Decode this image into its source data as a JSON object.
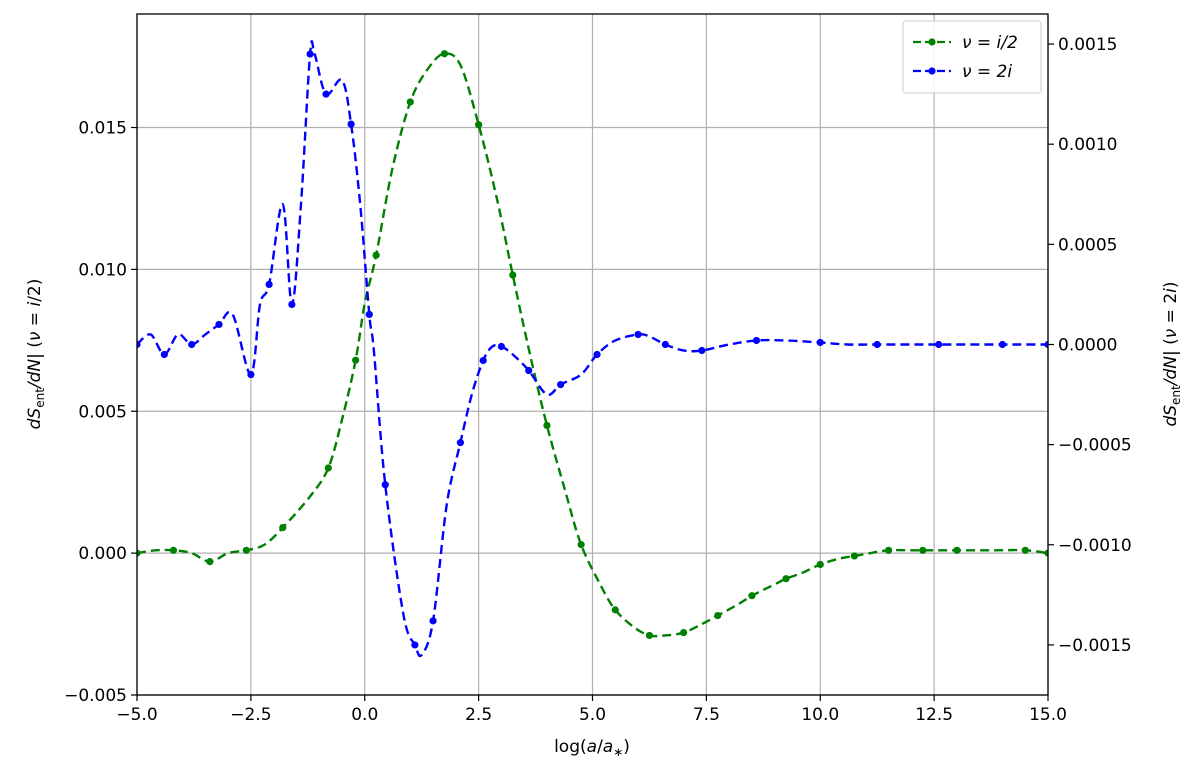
{
  "chart_data": {
    "type": "line",
    "xlabel": "log(a/a_*)",
    "ylabel_left": "dS_ent/dN| (ν = i/2)",
    "ylabel_right": "dS_ent/dN| (ν = 2i)",
    "xlim": [
      -5.0,
      15.0
    ],
    "ylim_left": [
      -0.005,
      0.019
    ],
    "ylim_right": [
      -0.00175,
      0.00165
    ],
    "grid": true,
    "legend_position": "top-right",
    "x_ticks": [
      -5.0,
      -2.5,
      0.0,
      2.5,
      5.0,
      7.5,
      10.0,
      12.5,
      15.0
    ],
    "x_tick_labels": [
      "−5.0",
      "−2.5",
      "0.0",
      "2.5",
      "5.0",
      "7.5",
      "10.0",
      "12.5",
      "15.0"
    ],
    "y_left_ticks": [
      -0.005,
      0.0,
      0.005,
      0.01,
      0.015
    ],
    "y_left_tick_labels": [
      "−0.005",
      "0.000",
      "0.005",
      "0.010",
      "0.015"
    ],
    "y_right_ticks": [
      -0.0015,
      -0.001,
      -0.0005,
      0.0,
      0.0005,
      0.001,
      0.0015
    ],
    "y_right_tick_labels": [
      "−0.0015",
      "−0.0010",
      "−0.0005",
      "0.0000",
      "0.0005",
      "0.0010",
      "0.0015"
    ],
    "series": [
      {
        "name": "ν = i/2",
        "axis": "left",
        "color": "#008000",
        "line_style": "dashed",
        "marker": "circle",
        "x": [
          -5.0,
          -4.6,
          -4.2,
          -3.8,
          -3.4,
          -3.0,
          -2.6,
          -2.2,
          -1.8,
          -1.2,
          -0.8,
          -0.5,
          -0.2,
          0.0,
          0.25,
          0.6,
          1.0,
          1.4,
          1.75,
          2.1,
          2.5,
          2.9,
          3.25,
          3.6,
          4.0,
          4.4,
          4.75,
          5.2,
          5.5,
          5.9,
          6.25,
          6.6,
          7.0,
          7.4,
          7.75,
          8.2,
          8.5,
          9.0,
          9.25,
          9.6,
          10.0,
          10.4,
          10.75,
          11.1,
          11.5,
          12.0,
          12.25,
          12.7,
          13.0,
          13.75,
          14.5,
          15.0
        ],
        "y": [
          0.0,
          0.0001,
          0.0001,
          0.0,
          -0.0003,
          0.0,
          0.0001,
          0.0003,
          0.0009,
          0.002,
          0.003,
          0.0047,
          0.0068,
          0.0088,
          0.0105,
          0.0135,
          0.0159,
          0.0171,
          0.0176,
          0.0172,
          0.0151,
          0.0125,
          0.0098,
          0.0072,
          0.0045,
          0.0022,
          0.0003,
          -0.0012,
          -0.002,
          -0.0026,
          -0.0029,
          -0.0029,
          -0.0028,
          -0.0025,
          -0.0022,
          -0.0018,
          -0.0015,
          -0.0011,
          -0.0009,
          -0.0007,
          -0.0004,
          -0.0002,
          -0.0001,
          0.0,
          0.0001,
          0.0001,
          0.0001,
          0.0001,
          0.0001,
          0.0001,
          0.0001,
          0.0
        ]
      },
      {
        "name": "ν = 2i",
        "axis": "right",
        "color": "#0000ff",
        "line_style": "dashed",
        "marker": "circle",
        "x": [
          -5.0,
          -4.7,
          -4.4,
          -4.1,
          -3.8,
          -3.5,
          -3.2,
          -2.9,
          -2.5,
          -2.3,
          -2.1,
          -1.8,
          -1.6,
          -1.4,
          -1.2,
          -1.1,
          -0.85,
          -0.5,
          -0.3,
          -0.1,
          0.1,
          0.2,
          0.45,
          0.85,
          1.1,
          1.25,
          1.5,
          1.8,
          2.1,
          2.35,
          2.6,
          2.8,
          3.0,
          3.25,
          3.6,
          4.0,
          4.3,
          4.75,
          5.1,
          5.5,
          6.0,
          6.25,
          6.6,
          7.0,
          7.4,
          8.0,
          8.6,
          9.25,
          10.0,
          10.6,
          11.25,
          12.0,
          12.6,
          13.25,
          14.0,
          14.5,
          15.0
        ],
        "y": [
          0.0,
          5e-05,
          -5e-05,
          5e-05,
          0.0,
          5e-05,
          0.0001,
          0.00015,
          -0.00015,
          0.0002,
          0.0003,
          0.0007,
          0.0002,
          0.0007,
          0.00145,
          0.00145,
          0.00125,
          0.00132,
          0.0011,
          0.0007,
          0.00015,
          -3e-05,
          -0.0007,
          -0.00135,
          -0.0015,
          -0.00155,
          -0.00138,
          -0.0008,
          -0.00049,
          -0.00025,
          -8e-05,
          -1e-05,
          -1e-05,
          -5e-05,
          -0.00013,
          -0.00025,
          -0.0002,
          -0.00015,
          -5e-05,
          2e-05,
          5e-05,
          4e-05,
          0.0,
          -3e-05,
          -3e-05,
          0.0,
          2e-05,
          2e-05,
          1e-05,
          0.0,
          0.0,
          0.0,
          0.0,
          0.0,
          0.0,
          0.0,
          0.0
        ]
      }
    ]
  }
}
